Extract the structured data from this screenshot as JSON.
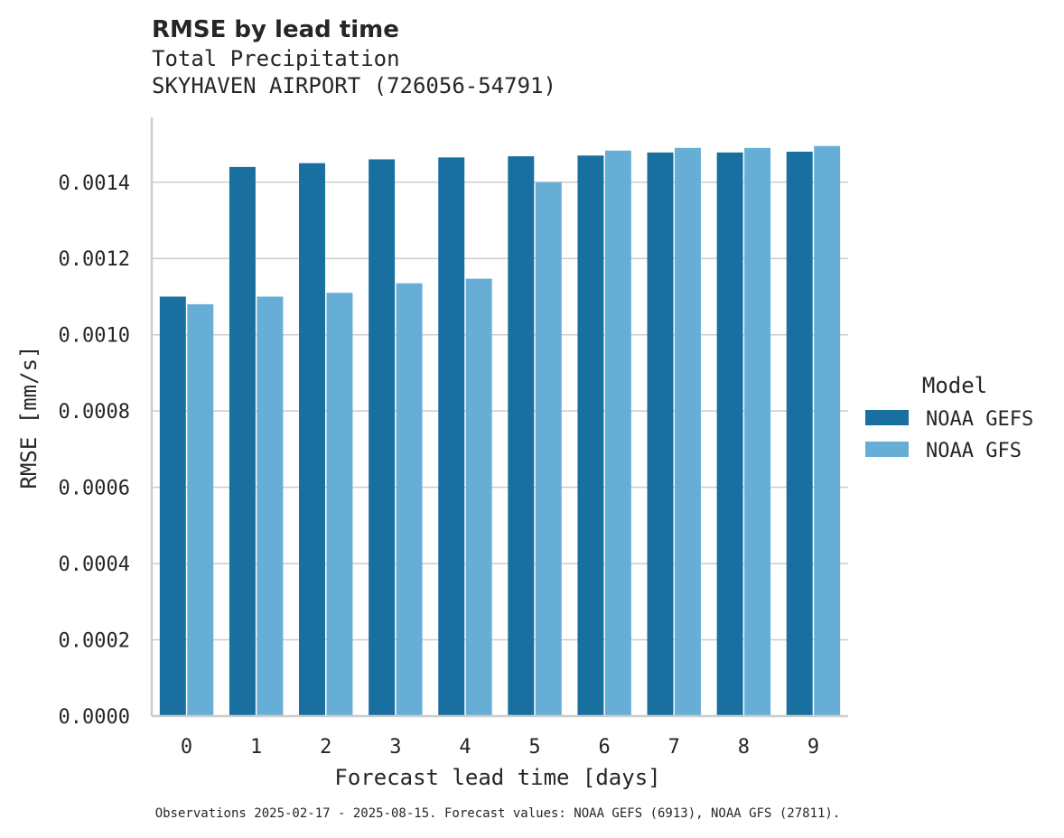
{
  "chart_data": {
    "type": "bar",
    "title": "RMSE by lead time",
    "subtitle_lines": [
      "Total Precipitation",
      "SKYHAVEN AIRPORT (726056-54791)"
    ],
    "xlabel": "Forecast lead time [days]",
    "ylabel": "RMSE [mm/s]",
    "categories": [
      "0",
      "1",
      "2",
      "3",
      "4",
      "5",
      "6",
      "7",
      "8",
      "9"
    ],
    "ylim": [
      0,
      0.00157
    ],
    "yticks": [
      "0.0000",
      "0.0002",
      "0.0004",
      "0.0006",
      "0.0008",
      "0.0010",
      "0.0012",
      "0.0014"
    ],
    "ytick_values": [
      0,
      0.0002,
      0.0004,
      0.0006,
      0.0008,
      0.001,
      0.0012,
      0.0014
    ],
    "grid": "horizontal",
    "legend": {
      "title": "Model",
      "placement": "right"
    },
    "series": [
      {
        "name": "NOAA GEFS",
        "color": "#186fa0",
        "values": [
          0.0011,
          0.00144,
          0.00145,
          0.00146,
          0.001465,
          0.001468,
          0.00147,
          0.001478,
          0.001478,
          0.00148
        ]
      },
      {
        "name": "NOAA GFS",
        "color": "#67aed7",
        "values": [
          0.00108,
          0.0011,
          0.00111,
          0.001135,
          0.001147,
          0.0014,
          0.001483,
          0.00149,
          0.00149,
          0.001495
        ]
      }
    ],
    "caption": "Observations 2025-02-17 - 2025-08-15. Forecast values: NOAA GEFS (6913), NOAA GFS (27811)."
  }
}
